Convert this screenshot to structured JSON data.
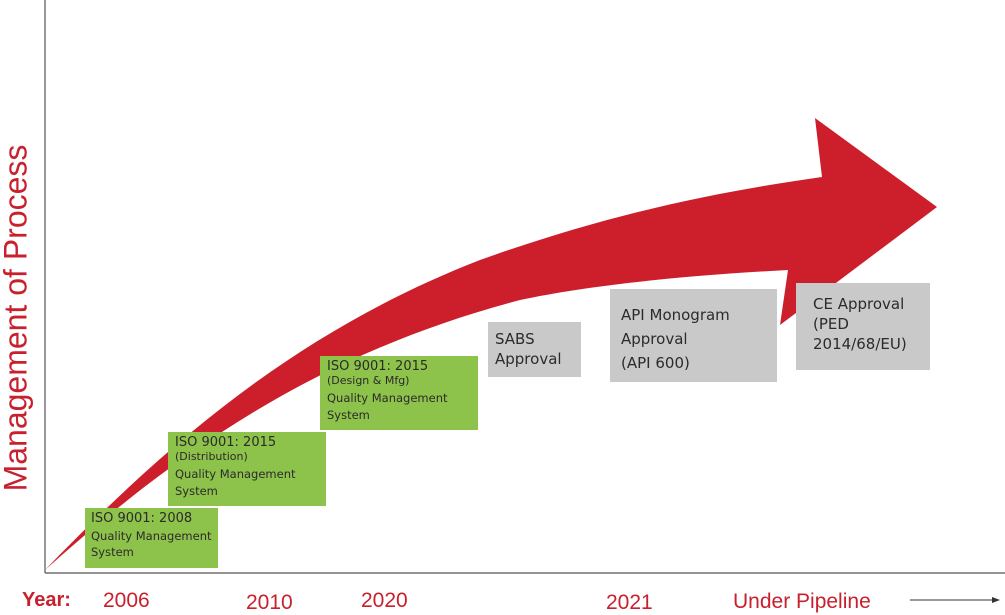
{
  "diagram": {
    "y_axis_label": "Management of Process",
    "year_label": "Year:",
    "years": [
      "2006",
      "2010",
      "2020",
      "2021",
      "Under Pipeline"
    ],
    "colors": {
      "arrow": "#cc1f2b",
      "axis": "#555555",
      "text_red": "#c8202c",
      "green_box": "#8dc24b",
      "gray_box": "#c9c9c9"
    },
    "milestones": [
      {
        "lines": [
          "ISO 9001: 2008",
          "Quality Management",
          "System"
        ]
      },
      {
        "lines": [
          "ISO 9001: 2015",
          "(Distribution)",
          "Quality Management",
          "System"
        ]
      },
      {
        "lines": [
          "ISO 9001: 2015",
          "(Design & Mfg)",
          "Quality Management",
          "System"
        ]
      },
      {
        "lines": [
          "SABS",
          "Approval"
        ]
      },
      {
        "lines": [
          "API Monogram",
          "Approval",
          "(API 600)"
        ]
      },
      {
        "lines": [
          "CE Approval",
          "(PED",
          "2014/68/EU)"
        ]
      }
    ]
  }
}
